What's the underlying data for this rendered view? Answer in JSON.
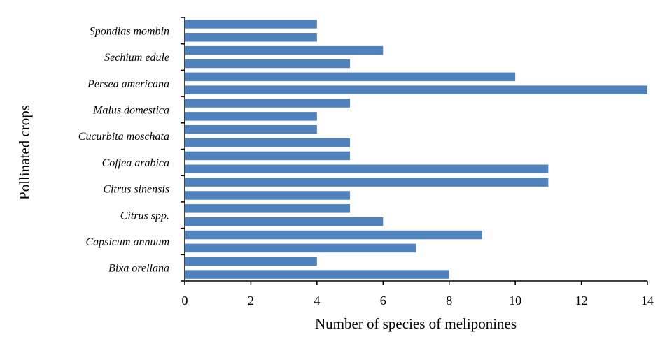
{
  "chart_data": {
    "type": "bar",
    "orientation": "horizontal",
    "xlabel": "Number of species of meliponines",
    "ylabel": "Pollinated crops",
    "xlim": [
      0,
      14
    ],
    "xticks": [
      0,
      2,
      4,
      6,
      8,
      10,
      12,
      14
    ],
    "bar_color": "#4f81bd",
    "grid": false,
    "bars_top_to_bottom": [
      4,
      4,
      6,
      5,
      10,
      14,
      5,
      4,
      4,
      5,
      5,
      11,
      11,
      5,
      5,
      6,
      9,
      7,
      4,
      8
    ],
    "category_labels_top_to_bottom": [
      "Spondias mombin",
      "Sechium edule",
      "Persea americana",
      "Malus domestica",
      "Cucurbita moschata",
      "Coffea arabica",
      "Citrus sinensis",
      "Citrus spp.",
      "Capsicum annuum",
      "Bixa orellana"
    ]
  }
}
